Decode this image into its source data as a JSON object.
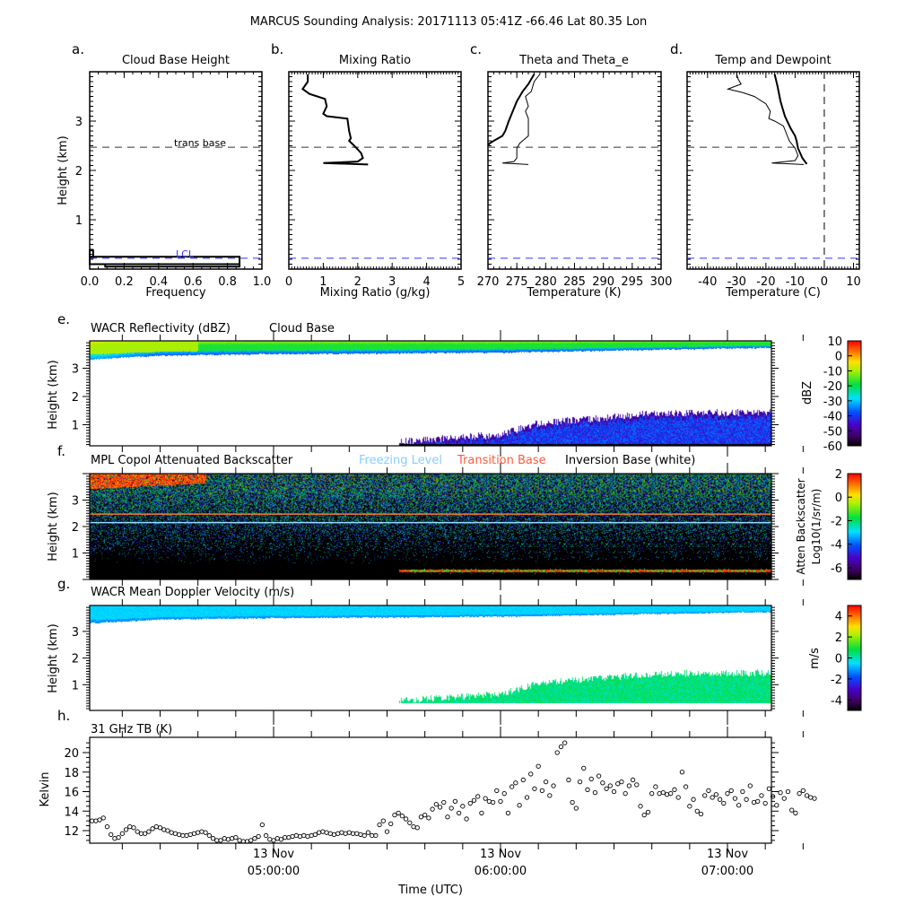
{
  "title": "MARCUS Sounding Analysis: 20171113 05:41Z   -66.46 Lat   80.35 Lon",
  "colors": {
    "lcl": "#3333ff",
    "freezing": "#88ccff",
    "transition": "#ff5a3c",
    "inversion": "#ffffff"
  },
  "chart_data": [
    {
      "id": "a",
      "panel_label": "a.",
      "type": "line",
      "title": "Cloud Base Height",
      "xlabel": "Frequency",
      "ylabel": "Height (km)",
      "xlim": [
        0,
        1
      ],
      "ylim": [
        0,
        4
      ],
      "xticks": [
        "0.0",
        "0.2",
        "0.4",
        "0.6",
        "0.8",
        "1.0"
      ],
      "yticks": [
        "1",
        "2",
        "3"
      ],
      "histogram": [
        {
          "h0": 0.25,
          "h1": 0.38,
          "freq": 0.02
        },
        {
          "h0": 0.1,
          "h1": 0.25,
          "freq": 0.87
        },
        {
          "h0": 0.05,
          "h1": 0.1,
          "freq": 0.87,
          "start": 0.09
        }
      ],
      "trans_base_label": "trans base",
      "trans_base_km": 2.47,
      "lcl_label": "LCL",
      "lcl_km": 0.22
    },
    {
      "id": "b",
      "panel_label": "b.",
      "type": "line",
      "title": "Mixing Ratio",
      "xlabel": "Mixing Ratio (g/kg)",
      "xlim": [
        0,
        5
      ],
      "ylim": [
        0,
        4
      ],
      "xticks": [
        "0",
        "1",
        "2",
        "3",
        "4",
        "5"
      ],
      "series": [
        {
          "name": "mixing ratio",
          "x": [
            0.55,
            0.55,
            0.4,
            0.6,
            1.05,
            1.1,
            1.0,
            1.1,
            1.7,
            1.75,
            1.8,
            1.75,
            1.9,
            2.1,
            2.15,
            2.0,
            1.0,
            2.3
          ],
          "y": [
            3.95,
            3.8,
            3.65,
            3.55,
            3.45,
            3.3,
            3.15,
            3.1,
            3.05,
            2.8,
            2.65,
            2.6,
            2.5,
            2.35,
            2.25,
            2.18,
            2.15,
            2.12
          ],
          "width": 2
        }
      ],
      "trans_base_km": 2.47,
      "lcl_km": 0.22
    },
    {
      "id": "c",
      "panel_label": "c.",
      "type": "line",
      "title": "Theta and Theta_e",
      "xlabel": "Temperature (K)",
      "xlim": [
        270,
        300
      ],
      "ylim": [
        0,
        4
      ],
      "xticks": [
        "270",
        "275",
        "280",
        "285",
        "290",
        "295",
        "300"
      ],
      "series": [
        {
          "name": "theta",
          "x": [
            278,
            277,
            276,
            275,
            274.3,
            273.6,
            273,
            272.5,
            271,
            270.3,
            270
          ],
          "y": [
            3.95,
            3.75,
            3.6,
            3.4,
            3.2,
            3.0,
            2.8,
            2.7,
            2.6,
            2.55,
            2.5
          ],
          "width": 2
        },
        {
          "name": "theta_e",
          "x": [
            279,
            278,
            277.5,
            276.5,
            277,
            276.5,
            277,
            277,
            276.5,
            275.5,
            275,
            275,
            274.5,
            272.5,
            277
          ],
          "y": [
            3.95,
            3.8,
            3.6,
            3.5,
            3.3,
            3.2,
            3.05,
            2.7,
            2.65,
            2.55,
            2.45,
            2.25,
            2.18,
            2.15,
            2.12
          ],
          "width": 1
        }
      ],
      "trans_base_km": 2.47,
      "lcl_km": 0.22
    },
    {
      "id": "d",
      "panel_label": "d.",
      "type": "line",
      "title": "Temp and Dewpoint",
      "xlabel": "Temperature (C)",
      "xlim": [
        -47,
        12
      ],
      "ylim": [
        0,
        4
      ],
      "xticks": [
        "-40",
        "-30",
        "-20",
        "-10",
        "0",
        "10"
      ],
      "series": [
        {
          "name": "temperature",
          "x": [
            -17,
            -16,
            -15,
            -13.5,
            -11.5,
            -10,
            -9.5,
            -9,
            -7.5,
            -6
          ],
          "y": [
            3.95,
            3.7,
            3.4,
            3.1,
            2.85,
            2.7,
            2.6,
            2.45,
            2.25,
            2.13
          ],
          "width": 2
        },
        {
          "name": "dewpoint",
          "x": [
            -30,
            -29.5,
            -28.5,
            -33,
            -28,
            -24,
            -20,
            -18.5,
            -19,
            -17,
            -14,
            -13,
            -12,
            -10,
            -9,
            -10,
            -18,
            -7
          ],
          "y": [
            3.95,
            3.85,
            3.75,
            3.65,
            3.58,
            3.5,
            3.35,
            3.2,
            3.05,
            3.0,
            2.9,
            2.75,
            2.6,
            2.45,
            2.3,
            2.2,
            2.15,
            2.12
          ],
          "width": 1
        }
      ],
      "zero_line_c": 0,
      "trans_base_km": 2.47,
      "lcl_km": 0.22
    },
    {
      "id": "e",
      "panel_label": "e.",
      "type": "heatmap",
      "title": "WACR Reflectivity (dBZ)",
      "legend_label": "Cloud Base",
      "ylabel": "Height (km)",
      "yticks": [
        "1",
        "2",
        "3"
      ],
      "colorbar": {
        "label": "dBZ",
        "range": [
          -60,
          10
        ],
        "ticks": [
          "10",
          "0",
          "-10",
          "-20",
          "-30",
          "-40",
          "-50",
          "-60"
        ]
      },
      "upper_layer": {
        "top_km": 4.0,
        "base_km_at_hours": {
          "04:11": 3.3,
          "04:30": 3.45,
          "05:00": 3.5,
          "06:00": 3.55,
          "07:00": 3.7,
          "07:12": 3.72
        },
        "typical_dbz": -15
      },
      "lower_layer": {
        "start": "05:33",
        "base_km": 0.27,
        "top_km_at_hours": {
          "05:33": 0.35,
          "06:00": 0.6,
          "06:10": 1.0,
          "06:40": 1.35,
          "07:12": 1.4
        },
        "typical_dbz": -38
      }
    },
    {
      "id": "f",
      "panel_label": "f.",
      "type": "heatmap",
      "title": "MPL Copol Attenuated Backscatter",
      "ylabel": "Height (km)",
      "yticks": [
        "1",
        "2",
        "3"
      ],
      "legend": [
        {
          "label": "Freezing Level",
          "color": "#88ccff"
        },
        {
          "label": "Transition Base",
          "color": "#ff5a3c"
        },
        {
          "label": "Inversion Base (white)",
          "color": "#000000"
        }
      ],
      "freezing_level_km": 2.15,
      "transition_base_km": 2.47,
      "cloud_signal_km": 0.33,
      "colorbar": {
        "label": "Atten Backscatter",
        "label2": "Log10(1/sr/m)",
        "range": [
          -7,
          2
        ],
        "ticks": [
          "2",
          "0",
          "-2",
          "-4",
          "-6"
        ]
      }
    },
    {
      "id": "g",
      "panel_label": "g.",
      "type": "heatmap",
      "title": "WACR Mean Doppler Velocity (m/s)",
      "ylabel": "Height (km)",
      "yticks": [
        "1",
        "2",
        "3"
      ],
      "colorbar": {
        "label": "m/s",
        "range": [
          -5,
          5
        ],
        "ticks": [
          "4",
          "2",
          "0",
          "-2",
          "-4"
        ]
      }
    },
    {
      "id": "h",
      "panel_label": "h.",
      "type": "scatter",
      "title": "31 GHz TB (K)",
      "ylabel": "Kelvin",
      "xlabel": "Time (UTC)",
      "ylim": [
        10.8,
        21.4
      ],
      "yticks": [
        "12",
        "14",
        "16",
        "18",
        "20"
      ],
      "xticks": [
        {
          "date": "13 Nov",
          "time": "05:00:00"
        },
        {
          "date": "13 Nov",
          "time": "06:00:00"
        },
        {
          "date": "13 Nov",
          "time": "07:00:00"
        }
      ],
      "time_start": "04:12",
      "interval_min": 1,
      "values": [
        13.0,
        13.0,
        13.1,
        13.3,
        12.4,
        11.6,
        11.2,
        11.3,
        11.7,
        12.1,
        12.4,
        12.3,
        11.9,
        11.7,
        11.7,
        11.9,
        12.2,
        12.4,
        12.3,
        12.1,
        12.0,
        11.8,
        11.7,
        11.6,
        11.5,
        11.5,
        11.6,
        11.7,
        11.8,
        11.9,
        11.8,
        11.5,
        11.2,
        11.0,
        11.0,
        11.2,
        11.1,
        11.2,
        11.3,
        11.0,
        10.9,
        10.9,
        11.0,
        11.2,
        11.4,
        12.6,
        11.5,
        11.1,
        11.0,
        11.2,
        11.1,
        11.3,
        11.3,
        11.4,
        11.5,
        11.4,
        11.5,
        11.4,
        11.5,
        11.6,
        11.8,
        11.9,
        11.8,
        11.7,
        11.6,
        11.7,
        11.8,
        11.7,
        11.8,
        11.7,
        11.7,
        11.6,
        11.5,
        11.8,
        11.5,
        11.5,
        12.6,
        13.0,
        11.9,
        12.7,
        13.6,
        13.8,
        13.5,
        13.2,
        12.8,
        12.4,
        12.3,
        13.4,
        13.6,
        13.3,
        14.2,
        14.7,
        14.4,
        14.9,
        13.4,
        14.3,
        15.0,
        13.8,
        14.5,
        13.2,
        14.8,
        15.1,
        15.5,
        13.8,
        15.3,
        15.0,
        14.9,
        16.1,
        15.0,
        15.8,
        13.8,
        16.5,
        16.9,
        14.6,
        17.2,
        15.4,
        17.8,
        16.3,
        18.6,
        16.1,
        17.0,
        15.6,
        16.6,
        20.0,
        20.6,
        21.0,
        17.2,
        14.9,
        14.3,
        17.0,
        18.4,
        16.2,
        17.3,
        15.9,
        17.6,
        16.9,
        16.3,
        16.6,
        16.0,
        16.8,
        17.0,
        15.8,
        16.6,
        17.2,
        16.7,
        14.5,
        13.6,
        13.9,
        15.8,
        16.5,
        15.8,
        15.9,
        15.7,
        15.8,
        16.2,
        15.4,
        18.0,
        16.5,
        14.5,
        15.2,
        14.0,
        13.7,
        15.6,
        16.1,
        15.4,
        15.7,
        15.2,
        14.8,
        15.8,
        16.1,
        15.3,
        14.6,
        16.0,
        15.2,
        16.6,
        14.9,
        15.0,
        15.6,
        14.8,
        16.3,
        15.5,
        14.6,
        15.9,
        15.3,
        16.0,
        14.1,
        13.8,
        15.8,
        16.1,
        15.6,
        15.4,
        15.3
      ]
    }
  ]
}
